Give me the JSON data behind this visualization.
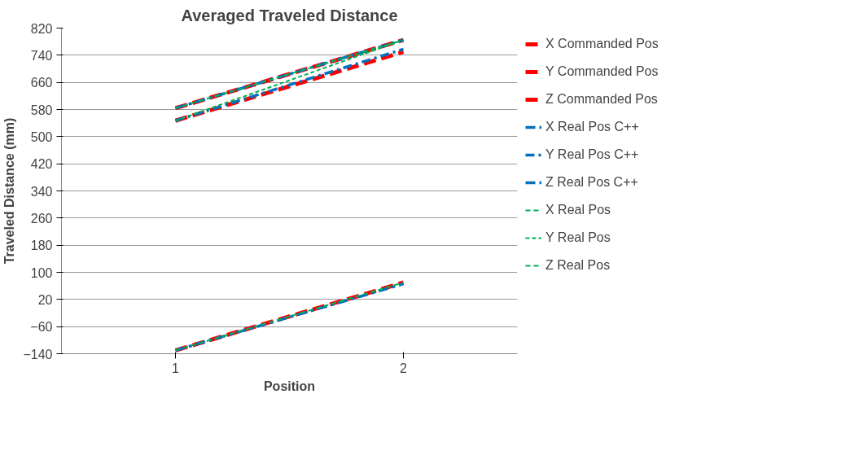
{
  "chart_data": {
    "type": "line",
    "title": "Averaged Traveled Distance",
    "xlabel": "Position",
    "ylabel": "Traveled Distance (mm)",
    "categories": [
      "1",
      "2"
    ],
    "series": [
      {
        "name": "X Commanded Pos",
        "color": "#ff0000",
        "line_style": "dashed",
        "values": [
          584,
          785
        ]
      },
      {
        "name": "Y Commanded Pos",
        "color": "#ff0000",
        "line_style": "dashed",
        "values": [
          547,
          750
        ]
      },
      {
        "name": "Z Commanded Pos",
        "color": "#ff0000",
        "line_style": "dashed",
        "values": [
          -130,
          70
        ]
      },
      {
        "name": "X Real Pos C++",
        "color": "#0070c0",
        "line_style": "dashdot",
        "values": [
          584,
          785
        ]
      },
      {
        "name": "Y Real Pos C++",
        "color": "#0070c0",
        "line_style": "dashdot",
        "values": [
          547,
          758
        ]
      },
      {
        "name": "Z Real Pos C++",
        "color": "#0070c0",
        "line_style": "dashdot",
        "values": [
          -130,
          66
        ]
      },
      {
        "name": "X Real Pos",
        "color": "#00b050",
        "line_style": "dotted",
        "values": [
          584,
          785
        ]
      },
      {
        "name": "Y Real Pos",
        "color": "#00b050",
        "line_style": "dotted",
        "values": [
          547,
          785
        ]
      },
      {
        "name": "Z Real Pos",
        "color": "#00b050",
        "line_style": "dotted",
        "values": [
          -130,
          70
        ]
      }
    ],
    "ylim": [
      -140,
      820
    ],
    "yticks": [
      -140,
      -60,
      20,
      100,
      180,
      260,
      340,
      420,
      500,
      580,
      660,
      740,
      820
    ],
    "grid": "y",
    "legend": "right",
    "marker": "none"
  }
}
